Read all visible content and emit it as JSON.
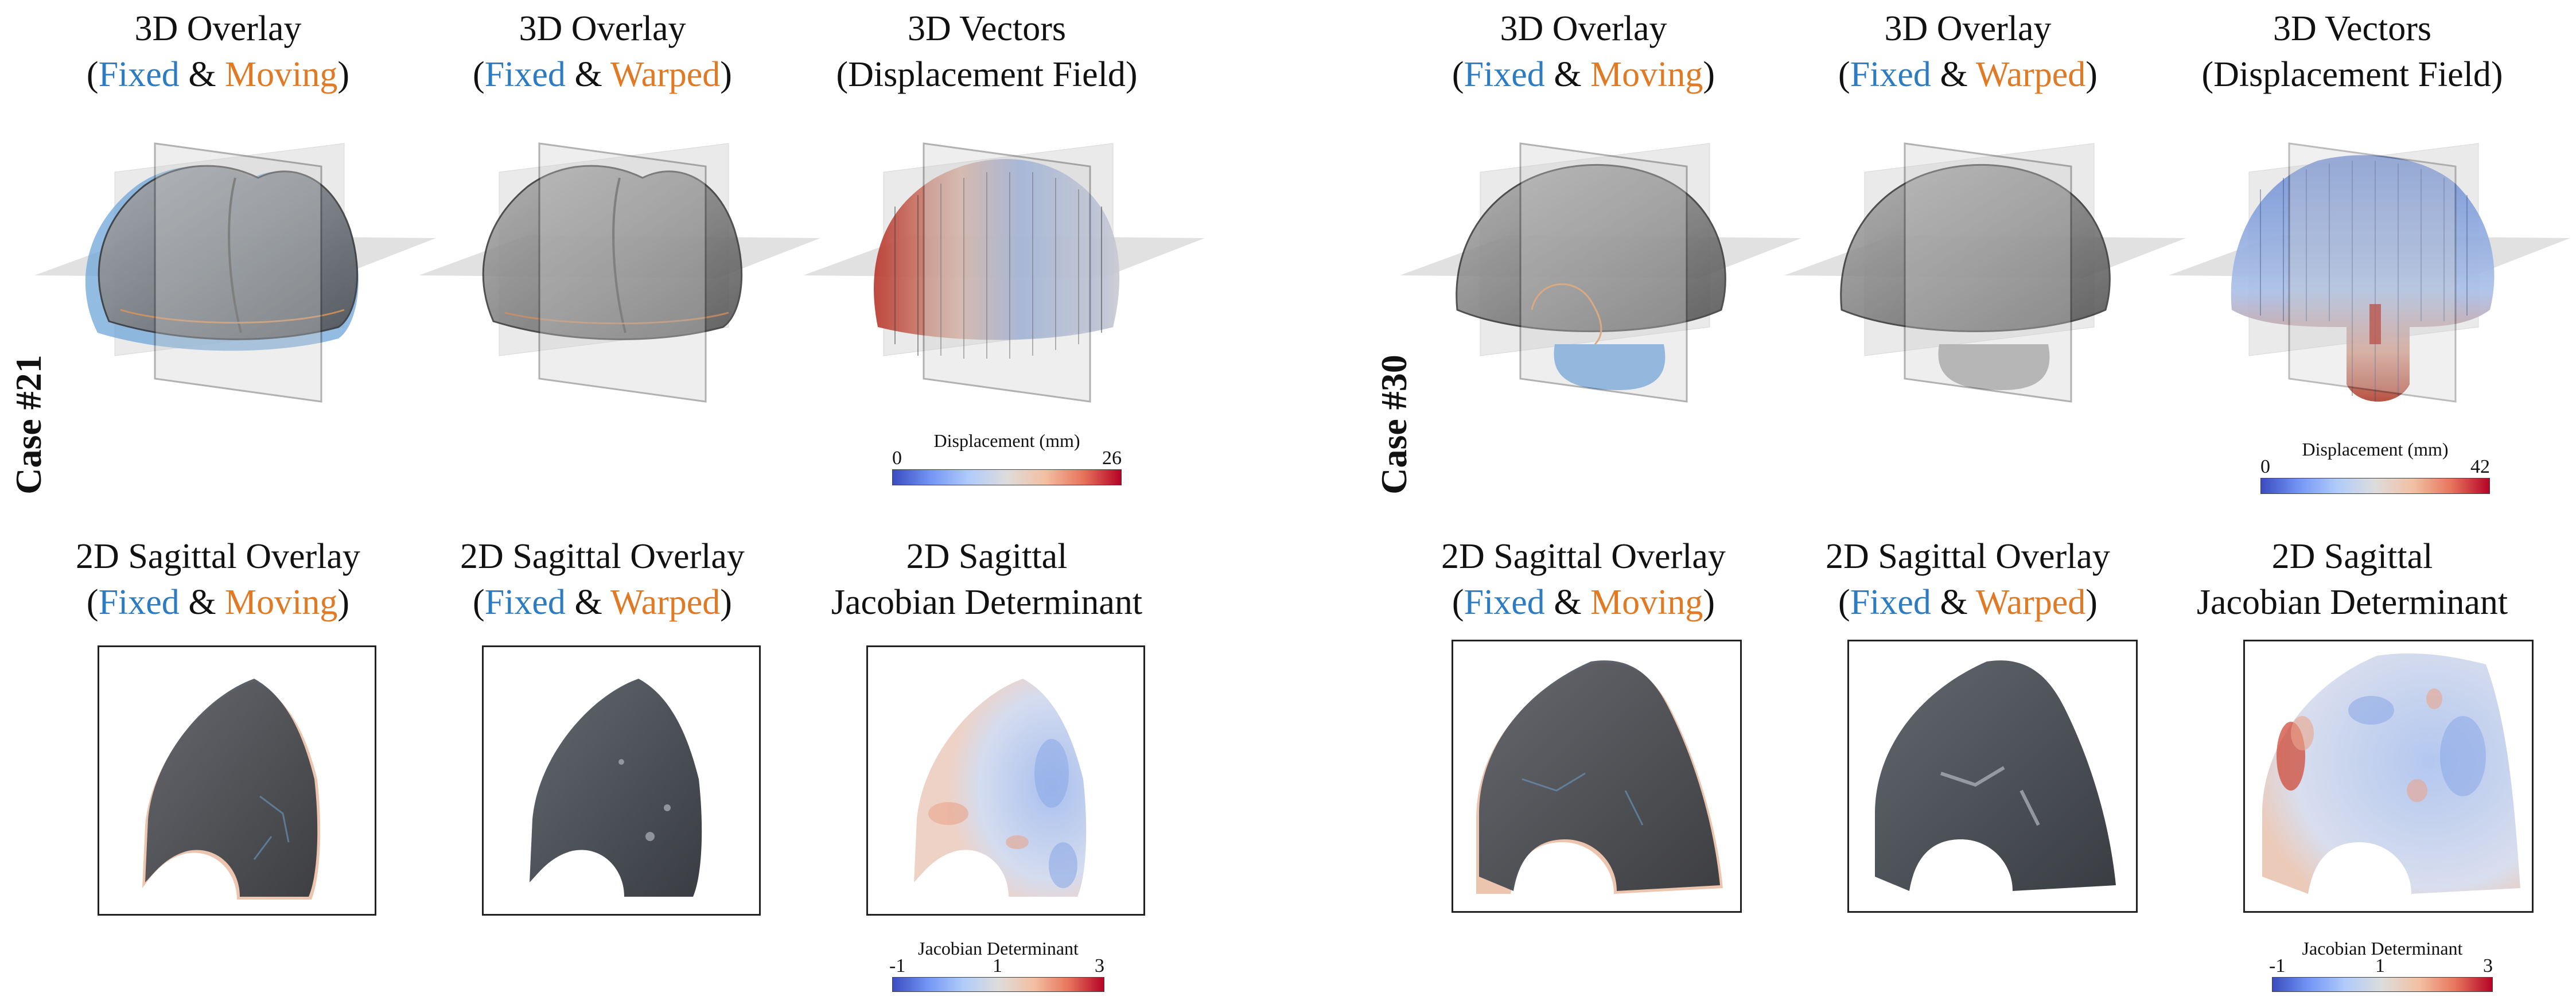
{
  "colors": {
    "fixed": "#2d7cc1",
    "moving": "#e07a25",
    "cmap_low": "#3b4cc0",
    "cmap_mid": "#dddcdc",
    "cmap_high": "#b40426"
  },
  "cases": [
    {
      "label": "Case #21",
      "titles": {
        "overlay_moving": {
          "line1": "3D Overlay",
          "open": "(",
          "fixed": "Fixed",
          "amp": " & ",
          "other": "Moving",
          "close": ")"
        },
        "overlay_warped": {
          "line1": "3D Overlay",
          "open": "(",
          "fixed": "Fixed",
          "amp": " & ",
          "other": "Warped",
          "close": ")"
        },
        "vectors": {
          "line1": "3D Vectors",
          "line2": "(Displacement Field)"
        },
        "sag_moving": {
          "line1": "2D Sagittal Overlay",
          "open": "(",
          "fixed": "Fixed",
          "amp": " & ",
          "other": "Moving",
          "close": ")"
        },
        "sag_warped": {
          "line1": "2D Sagittal Overlay",
          "open": "(",
          "fixed": "Fixed",
          "amp": " & ",
          "other": "Warped",
          "close": ")"
        },
        "jacobian": {
          "line1": "2D Sagittal",
          "line2": "Jacobian Determinant"
        }
      },
      "displacement_colorbar": {
        "title": "Displacement (mm)",
        "min": "0",
        "max": "26"
      },
      "jacobian_colorbar": {
        "title": "Jacobian Determinant",
        "min": "-1",
        "mid": "1",
        "max": "3"
      }
    },
    {
      "label": "Case #30",
      "titles": {
        "overlay_moving": {
          "line1": "3D Overlay",
          "open": "(",
          "fixed": "Fixed",
          "amp": " & ",
          "other": "Moving",
          "close": ")"
        },
        "overlay_warped": {
          "line1": "3D Overlay",
          "open": "(",
          "fixed": "Fixed",
          "amp": " & ",
          "other": "Warped",
          "close": ")"
        },
        "vectors": {
          "line1": "3D Vectors",
          "line2": "(Displacement Field)"
        },
        "sag_moving": {
          "line1": "2D Sagittal Overlay",
          "open": "(",
          "fixed": "Fixed",
          "amp": " & ",
          "other": "Moving",
          "close": ")"
        },
        "sag_warped": {
          "line1": "2D Sagittal Overlay",
          "open": "(",
          "fixed": "Fixed",
          "amp": " & ",
          "other": "Warped",
          "close": ")"
        },
        "jacobian": {
          "line1": "2D Sagittal",
          "line2": "Jacobian Determinant"
        }
      },
      "displacement_colorbar": {
        "title": "Displacement (mm)",
        "min": "0",
        "max": "42"
      },
      "jacobian_colorbar": {
        "title": "Jacobian Determinant",
        "min": "-1",
        "mid": "1",
        "max": "3"
      }
    }
  ]
}
